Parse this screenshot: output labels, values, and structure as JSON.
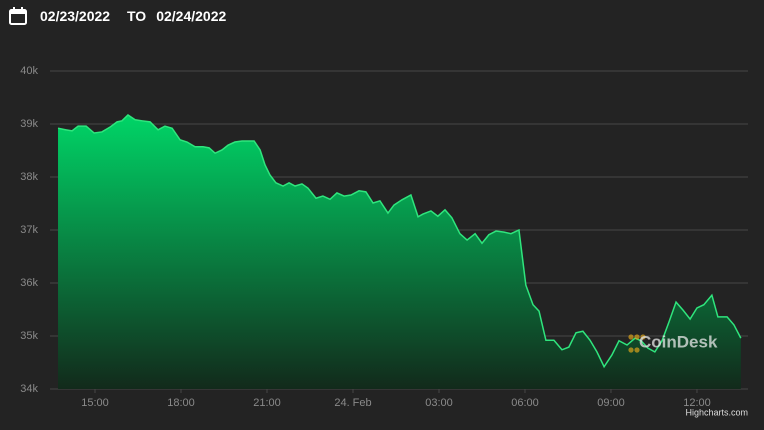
{
  "header": {
    "start_date": "02/23/2022",
    "separator": "TO",
    "end_date": "02/24/2022"
  },
  "chart_data": {
    "type": "area",
    "x": [
      13.71,
      13.99,
      14.2,
      14.41,
      14.69,
      14.97,
      15.24,
      15.52,
      15.77,
      15.94,
      16.15,
      16.4,
      16.64,
      16.92,
      17.2,
      17.44,
      17.69,
      17.97,
      18.21,
      18.49,
      18.77,
      18.98,
      19.19,
      19.43,
      19.64,
      19.88,
      20.13,
      20.41,
      20.55,
      20.76,
      20.93,
      21.1,
      21.31,
      21.56,
      21.77,
      21.98,
      22.22,
      22.43,
      22.71,
      22.95,
      23.2,
      23.44,
      23.69,
      23.93,
      24.21,
      24.45,
      24.7,
      24.94,
      25.22,
      25.43,
      25.71,
      26.02,
      26.27,
      26.44,
      26.72,
      26.96,
      27.21,
      27.45,
      27.73,
      27.98,
      28.26,
      28.5,
      28.74,
      28.99,
      29.27,
      29.51,
      29.79,
      30.03,
      30.28,
      30.49,
      30.73,
      31.01,
      31.29,
      31.53,
      31.78,
      32.02,
      32.27,
      32.51,
      32.76,
      33.03,
      33.28,
      33.56,
      33.84,
      34.05,
      34.29,
      34.53,
      34.78,
      35.02,
      35.27,
      35.51,
      35.76,
      36.0,
      36.24,
      36.52,
      36.73,
      37.05,
      37.29,
      37.53
    ],
    "values": [
      38920,
      38890,
      38870,
      38960,
      38960,
      38830,
      38850,
      38940,
      39040,
      39060,
      39170,
      39080,
      39060,
      39040,
      38890,
      38960,
      38920,
      38700,
      38660,
      38570,
      38570,
      38550,
      38450,
      38510,
      38600,
      38660,
      38680,
      38680,
      38680,
      38510,
      38230,
      38040,
      37890,
      37830,
      37890,
      37830,
      37870,
      37790,
      37600,
      37640,
      37580,
      37700,
      37640,
      37660,
      37740,
      37720,
      37510,
      37550,
      37320,
      37470,
      37570,
      37660,
      37250,
      37300,
      37360,
      37260,
      37380,
      37230,
      36930,
      36810,
      36930,
      36750,
      36910,
      36980,
      36960,
      36930,
      37000,
      35960,
      35590,
      35470,
      34920,
      34920,
      34740,
      34790,
      35060,
      35090,
      34920,
      34700,
      34420,
      34640,
      34910,
      34830,
      34960,
      34910,
      34770,
      34700,
      34910,
      35260,
      35640,
      35490,
      35320,
      35530,
      35590,
      35770,
      35360,
      35360,
      35210,
      34960
    ],
    "color": "#2fe57d",
    "xlim": [
      13.43,
      37.78
    ],
    "xticks": [
      {
        "value": 15,
        "label": "15:00"
      },
      {
        "value": 18,
        "label": "18:00"
      },
      {
        "value": 21,
        "label": "21:00"
      },
      {
        "value": 24,
        "label": "24. Feb"
      },
      {
        "value": 27,
        "label": "03:00"
      },
      {
        "value": 30,
        "label": "06:00"
      },
      {
        "value": 33,
        "label": "09:00"
      },
      {
        "value": 36,
        "label": "12:00"
      }
    ],
    "ylim": [
      34000,
      40000
    ],
    "yticks": [
      {
        "value": 34000,
        "label": "34k"
      },
      {
        "value": 35000,
        "label": "35k"
      },
      {
        "value": 36000,
        "label": "36k"
      },
      {
        "value": 37000,
        "label": "37k"
      },
      {
        "value": 38000,
        "label": "38k"
      },
      {
        "value": 39000,
        "label": "39k"
      },
      {
        "value": 40000,
        "label": "40k"
      }
    ],
    "grid": true,
    "watermark": "CoinDesk",
    "credits": "Highcharts.com"
  }
}
